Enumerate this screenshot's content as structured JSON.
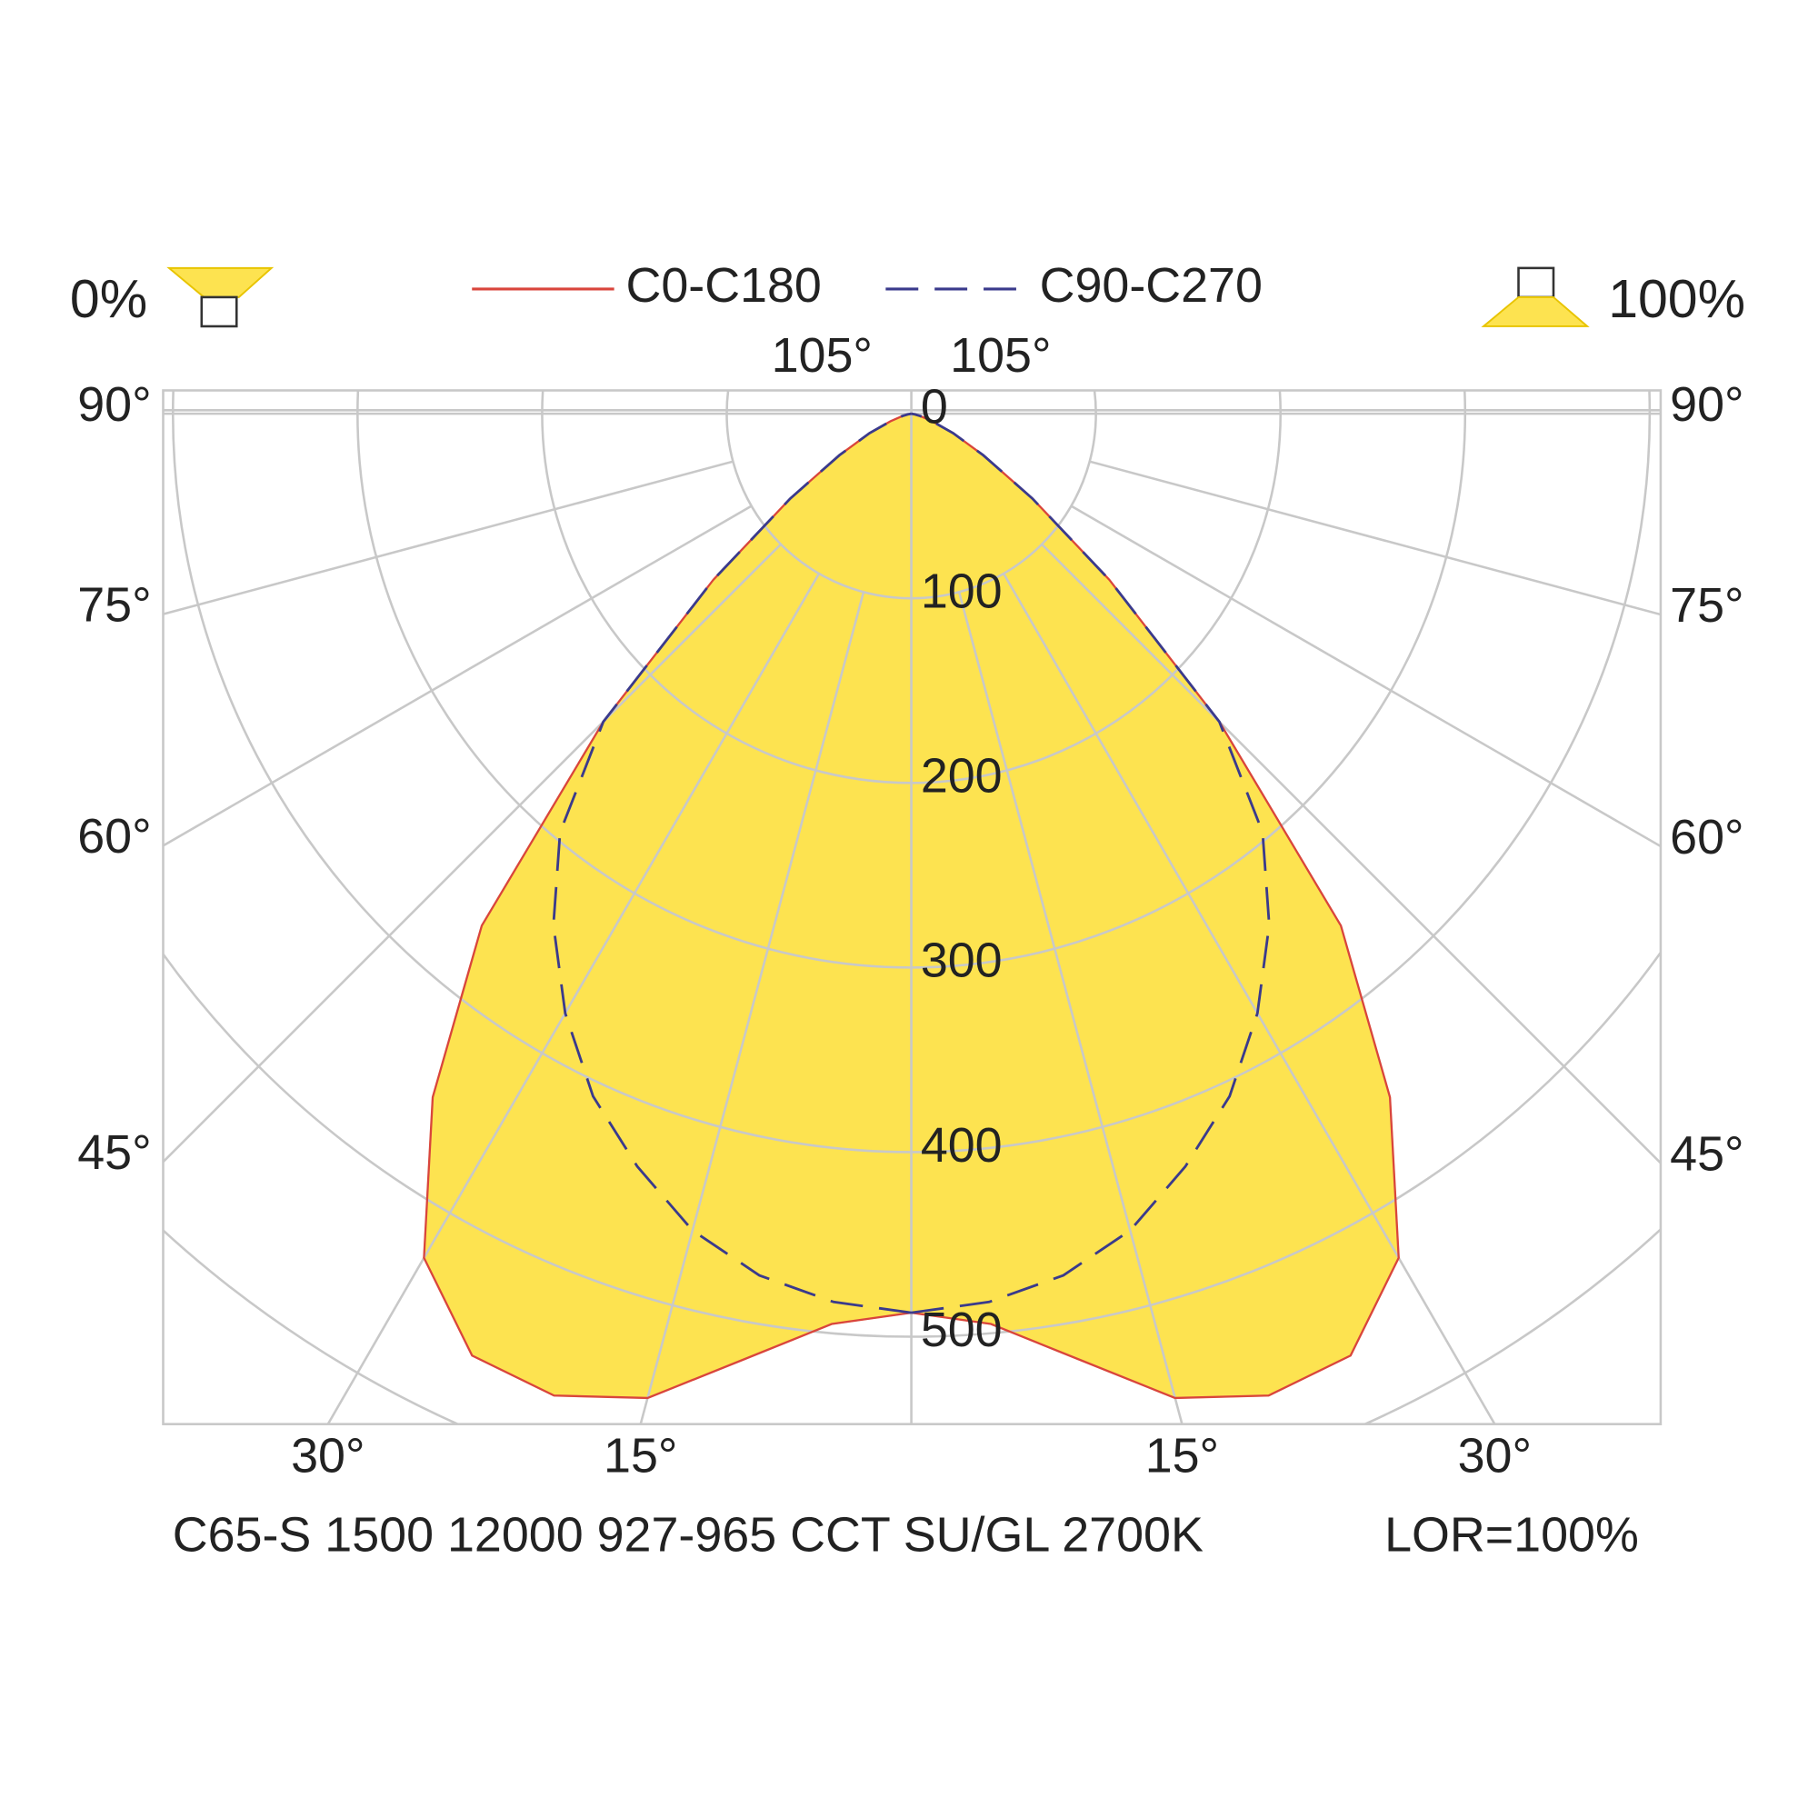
{
  "chart_data": {
    "type": "polar",
    "upward_light": "0%",
    "downward_light": "100%",
    "theta": [
      0,
      5,
      10,
      15,
      20,
      25,
      30,
      35,
      40,
      45,
      50,
      55,
      60,
      65,
      70,
      75,
      80,
      85,
      90
    ],
    "series": [
      {
        "name": "C0-C180",
        "color": "#d9453c",
        "fill": "#fde350",
        "values": [
          487,
          495,
          520,
          552,
          566,
          563,
          528,
          452,
          362,
          236,
          140,
          80,
          45,
          25,
          12,
          5,
          2,
          0,
          0
        ]
      },
      {
        "name": "C90-C270",
        "color": "#3a3a8c",
        "dash": true,
        "values": [
          487,
          483,
          474,
          458,
          434,
          408,
          375,
          338,
          296,
          236,
          140,
          80,
          45,
          25,
          12,
          5,
          2,
          0,
          0
        ]
      }
    ],
    "rlim": [
      0,
      500
    ],
    "rticks": [
      0,
      100,
      200,
      300,
      400,
      500
    ],
    "rgrid": [
      100,
      200,
      300,
      400,
      500,
      600,
      700,
      800
    ],
    "aticks": [
      {
        "value": 15,
        "label": "15°"
      },
      {
        "value": 30,
        "label": "30°"
      },
      {
        "value": 45,
        "label": "45°"
      },
      {
        "value": 60,
        "label": "60°"
      },
      {
        "value": 75,
        "label": "75°"
      },
      {
        "value": 90,
        "label": "90°"
      },
      {
        "value": 105,
        "label": "105°"
      }
    ],
    "caption": "C65-S 1500 12000 927-965 CCT SU/GL 2700K",
    "lor": "LOR=100%"
  }
}
